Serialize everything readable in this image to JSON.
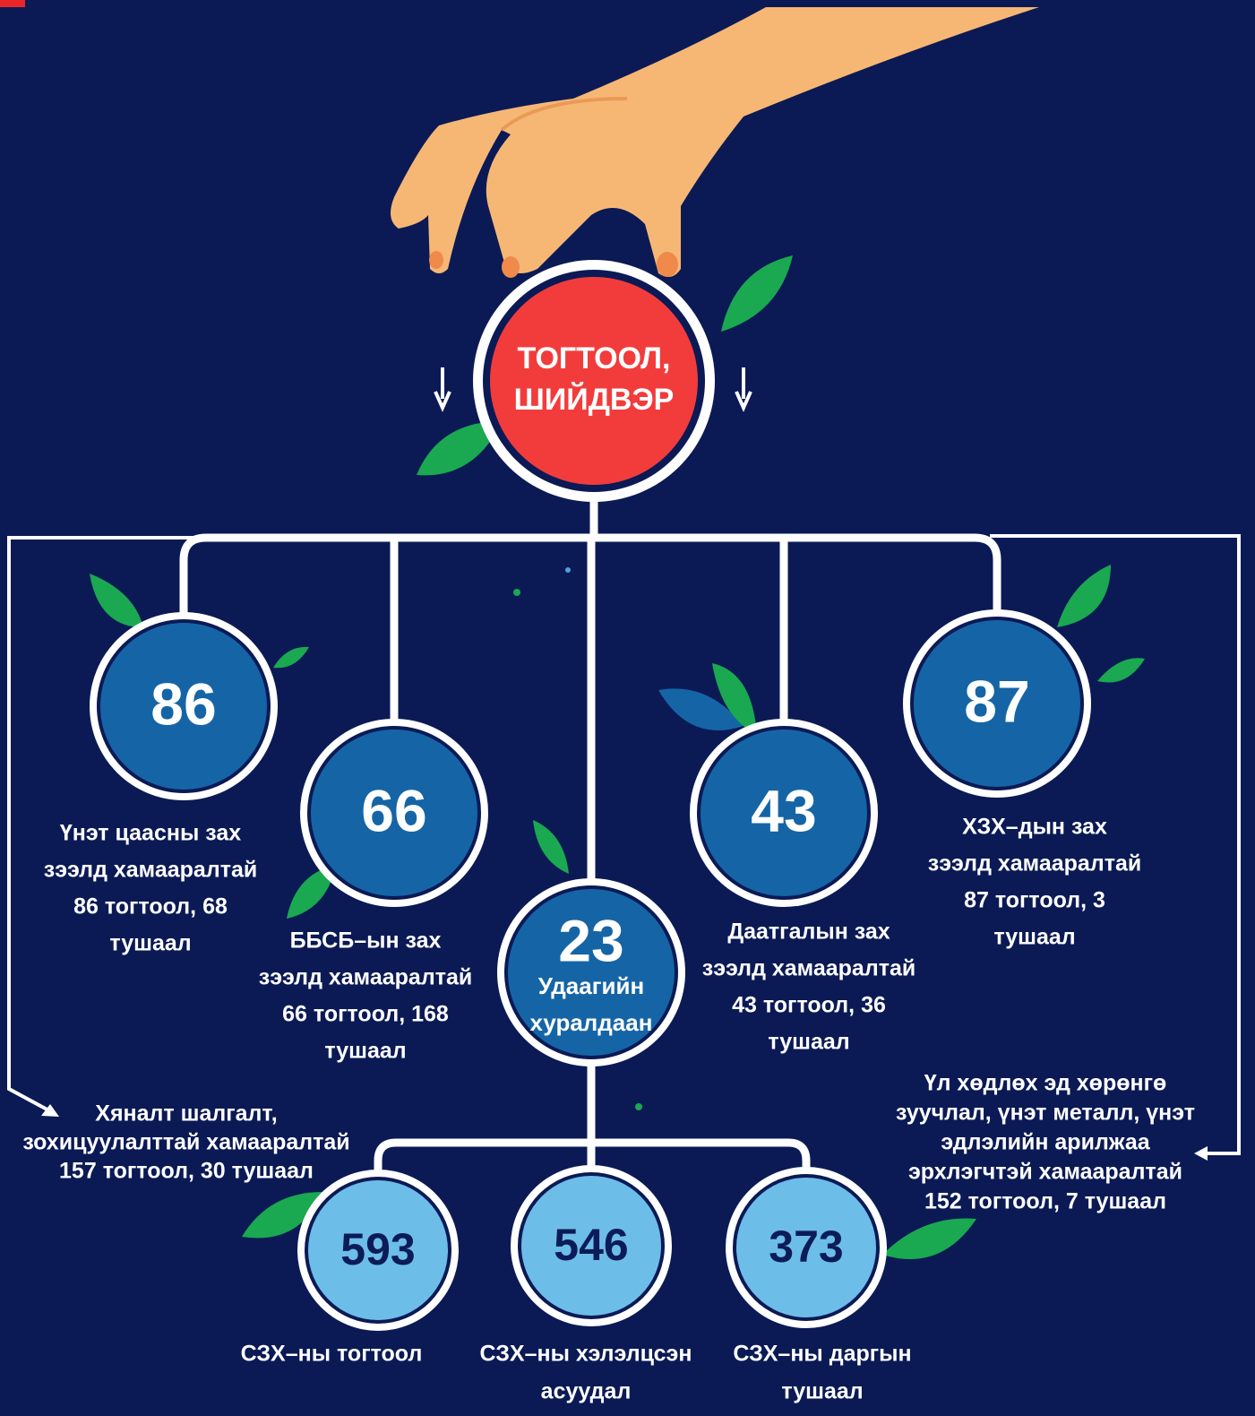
{
  "root": {
    "label_lines": [
      "ТОГТООЛ,",
      "ШИЙДВЭР"
    ]
  },
  "nodes": [
    {
      "value": 86,
      "description": [
        "Үнэт цаасны зах",
        "зээлд хамааралтай",
        "86 тогтоол, 68",
        "тушаал"
      ]
    },
    {
      "value": 66,
      "description": [
        "ББСБ–ын зах",
        "зээлд хамааралтай",
        "66 тогтоол, 168",
        "тушаал"
      ]
    },
    {
      "value": 23,
      "description": [
        "Удаагийн",
        "хуралдаан"
      ]
    },
    {
      "value": 43,
      "description": [
        "Даатгалын зах",
        "зээлд хамааралтай",
        "43 тогтоол, 36",
        "тушаал"
      ]
    },
    {
      "value": 87,
      "description": [
        "ХЗХ–дын зах",
        "зээлд хамааралтай",
        "87 тогтоол, 3",
        "тушаал"
      ]
    }
  ],
  "side_notes": {
    "left": [
      "Хяналт шалгалт,",
      "зохицуулалттай хамааралтай",
      "157 тогтоол, 30 тушаал"
    ],
    "right": [
      "Үл хөдлөх эд хөрөнгө",
      "зуучлал, үнэт металл, үнэт",
      "эдлэлийн арилжаа",
      "эрхлэгчтэй хамааралтай",
      "152 тогтоол, 7 тушаал"
    ]
  },
  "bottom_nodes": [
    {
      "value": 593,
      "description": [
        "СЗХ–ны тогтоол"
      ]
    },
    {
      "value": 546,
      "description": [
        "СЗХ–ны хэлэлцсэн",
        "асуудал"
      ]
    },
    {
      "value": 373,
      "description": [
        "СЗХ–ны даргын",
        "тушаал"
      ]
    }
  ]
}
